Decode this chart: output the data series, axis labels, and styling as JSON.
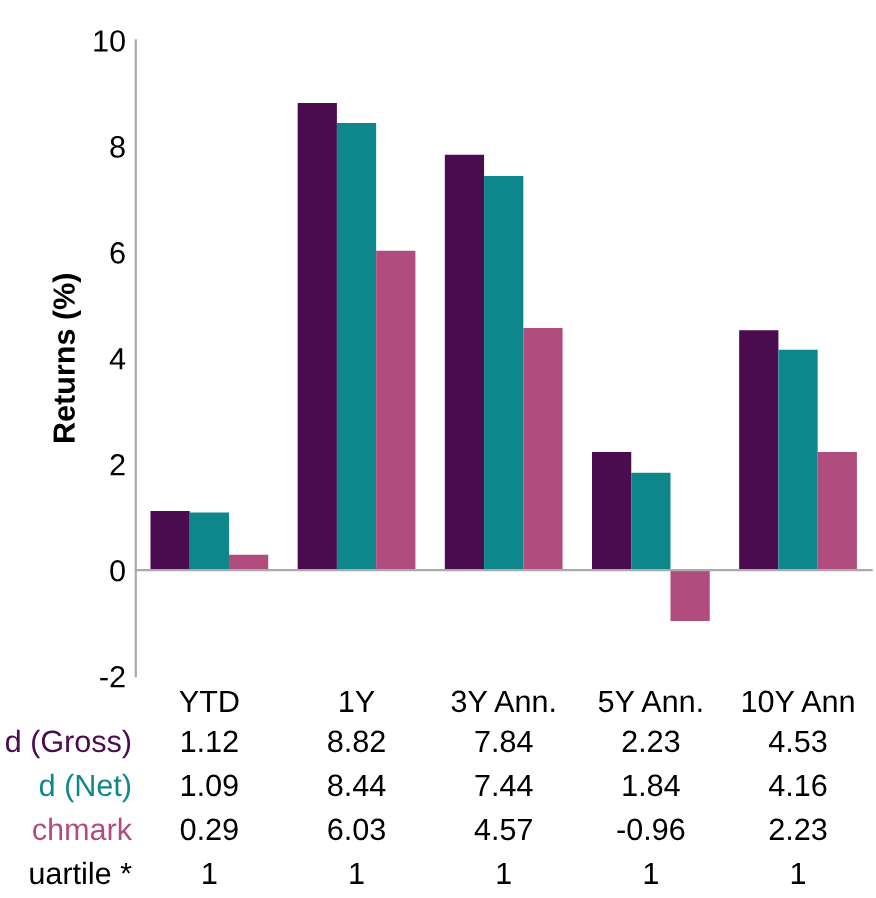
{
  "chart_data": {
    "type": "bar",
    "ylabel": "Returns (%)",
    "categories": [
      "YTD",
      "1Y",
      "3Y Ann.",
      "5Y Ann.",
      "10Y Ann"
    ],
    "series": [
      {
        "name": "d (Gross)",
        "color": "#4b0b4f",
        "values": [
          1.12,
          8.82,
          7.84,
          2.23,
          4.53
        ]
      },
      {
        "name": "d (Net)",
        "color": "#0e878c",
        "values": [
          1.09,
          8.44,
          7.44,
          1.84,
          4.16
        ]
      },
      {
        "name": "chmark",
        "color": "#b04c7e",
        "values": [
          0.29,
          6.03,
          4.57,
          -0.96,
          2.23
        ]
      }
    ],
    "ylim": [
      -2,
      10
    ],
    "yticks": [
      -2,
      0,
      2,
      4,
      6,
      8,
      10
    ],
    "legend": false,
    "data_labels": true,
    "annotations": [
      "uartile *",
      "1",
      "1",
      "1",
      "1",
      "1"
    ]
  }
}
